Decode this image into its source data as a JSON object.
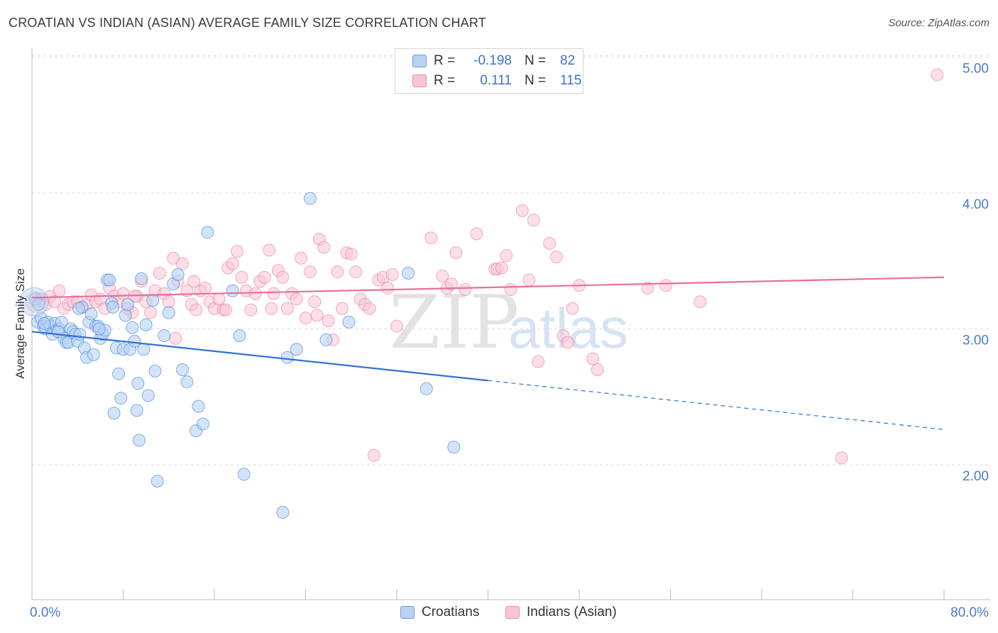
{
  "title": "CROATIAN VS INDIAN (ASIAN) AVERAGE FAMILY SIZE CORRELATION CHART",
  "source": "Source: ZipAtlas.com",
  "watermark": {
    "zip": "ZIP",
    "atlas": "atlas"
  },
  "legend": {
    "rows": [
      {
        "r_label": "R =",
        "r_value": "-0.198",
        "n_label": "N =",
        "n_value": "82"
      },
      {
        "r_label": "R =",
        "r_value": "0.111",
        "n_label": "N =",
        "n_value": "115"
      }
    ]
  },
  "bottom_legend": {
    "series1": "Croatians",
    "series2": "Indians (Asian)"
  },
  "colors": {
    "blue": "#4a86d8",
    "blue_fill": "#b8d2f3",
    "pink": "#e8709a",
    "pink_fill": "#f9c4d6",
    "tick": "#4a7cc7"
  },
  "chart_data": {
    "type": "scatter",
    "title": "CROATIAN VS INDIAN (ASIAN) AVERAGE FAMILY SIZE CORRELATION CHART",
    "xlabel": "",
    "ylabel": "Average Family Size",
    "xlim": [
      0,
      80
    ],
    "ylim": [
      1.0,
      5.2
    ],
    "x_tick_labels": [
      "0.0%",
      "80.0%"
    ],
    "y_ticks": [
      2.0,
      3.0,
      4.0,
      5.0
    ],
    "y_tick_labels": [
      "2.00",
      "3.00",
      "4.00",
      "5.00"
    ],
    "grid": true,
    "series": [
      {
        "name": "Croatians",
        "r": -0.198,
        "n": 82,
        "trend": {
          "x0": 0,
          "y0": 2.98,
          "x1": 40,
          "y1": 2.62,
          "dashed_to_x": 80,
          "dashed_to_y": 2.26
        },
        "points": [
          [
            0.3,
            3.22
          ],
          [
            0.5,
            3.05
          ],
          [
            0.8,
            3.08
          ],
          [
            1.0,
            3.02
          ],
          [
            1.2,
            3.0
          ],
          [
            1.4,
            3.05
          ],
          [
            1.6,
            3.02
          ],
          [
            1.8,
            2.96
          ],
          [
            2.0,
            3.04
          ],
          [
            2.2,
            2.99
          ],
          [
            2.4,
            3.0
          ],
          [
            2.6,
            3.05
          ],
          [
            2.8,
            2.93
          ],
          [
            3.0,
            2.9
          ],
          [
            3.2,
            2.9
          ],
          [
            3.4,
            3.0
          ],
          [
            3.6,
            2.98
          ],
          [
            3.8,
            2.96
          ],
          [
            4.0,
            2.91
          ],
          [
            4.2,
            2.96
          ],
          [
            4.4,
            3.16
          ],
          [
            4.6,
            2.86
          ],
          [
            4.8,
            2.79
          ],
          [
            5.0,
            3.05
          ],
          [
            5.2,
            3.11
          ],
          [
            5.4,
            2.81
          ],
          [
            5.6,
            3.02
          ],
          [
            5.8,
            3.02
          ],
          [
            6.0,
            2.93
          ],
          [
            6.2,
            2.96
          ],
          [
            6.4,
            2.99
          ],
          [
            6.6,
            3.36
          ],
          [
            6.8,
            3.36
          ],
          [
            7.0,
            3.19
          ],
          [
            7.2,
            2.38
          ],
          [
            7.4,
            2.86
          ],
          [
            7.6,
            2.67
          ],
          [
            7.8,
            2.49
          ],
          [
            8.0,
            2.85
          ],
          [
            8.2,
            3.1
          ],
          [
            8.4,
            3.18
          ],
          [
            8.6,
            2.85
          ],
          [
            8.8,
            3.01
          ],
          [
            9.0,
            2.91
          ],
          [
            9.2,
            2.4
          ],
          [
            9.4,
            2.18
          ],
          [
            9.6,
            3.37
          ],
          [
            9.8,
            2.85
          ],
          [
            10.0,
            3.03
          ],
          [
            10.2,
            2.51
          ],
          [
            10.6,
            3.21
          ],
          [
            10.8,
            2.69
          ],
          [
            11.0,
            1.88
          ],
          [
            11.6,
            2.95
          ],
          [
            12.0,
            3.12
          ],
          [
            12.4,
            3.33
          ],
          [
            12.8,
            3.4
          ],
          [
            13.2,
            2.7
          ],
          [
            13.6,
            2.61
          ],
          [
            14.4,
            2.25
          ],
          [
            14.6,
            2.43
          ],
          [
            15.0,
            2.3
          ],
          [
            15.4,
            3.71
          ],
          [
            17.6,
            3.28
          ],
          [
            18.2,
            2.95
          ],
          [
            18.6,
            1.93
          ],
          [
            22.0,
            1.65
          ],
          [
            22.4,
            2.79
          ],
          [
            23.2,
            2.85
          ],
          [
            24.4,
            3.96
          ],
          [
            25.8,
            2.92
          ],
          [
            27.8,
            3.05
          ],
          [
            33.0,
            3.41
          ],
          [
            34.6,
            2.56
          ],
          [
            37.0,
            2.13
          ],
          [
            0.6,
            3.18
          ],
          [
            1.1,
            3.04
          ],
          [
            2.3,
            2.98
          ],
          [
            4.1,
            3.15
          ],
          [
            5.9,
            3.0
          ],
          [
            7.1,
            3.16
          ],
          [
            9.3,
            2.6
          ]
        ]
      },
      {
        "name": "Indians (Asian)",
        "r": 0.111,
        "n": 115,
        "trend": {
          "x0": 0,
          "y0": 3.23,
          "x1": 80,
          "y1": 3.38
        },
        "points": [
          [
            0.4,
            3.2
          ],
          [
            0.8,
            3.22
          ],
          [
            1.2,
            3.18
          ],
          [
            1.6,
            3.24
          ],
          [
            2.0,
            3.2
          ],
          [
            2.4,
            3.28
          ],
          [
            2.8,
            3.15
          ],
          [
            3.2,
            3.18
          ],
          [
            3.6,
            3.2
          ],
          [
            4.0,
            3.2
          ],
          [
            4.4,
            3.16
          ],
          [
            4.8,
            3.18
          ],
          [
            5.2,
            3.25
          ],
          [
            5.6,
            3.2
          ],
          [
            6.0,
            3.22
          ],
          [
            6.4,
            3.15
          ],
          [
            6.8,
            3.3
          ],
          [
            7.2,
            3.24
          ],
          [
            7.6,
            3.2
          ],
          [
            8.0,
            3.26
          ],
          [
            8.4,
            3.15
          ],
          [
            8.8,
            3.12
          ],
          [
            9.2,
            3.24
          ],
          [
            9.6,
            3.35
          ],
          [
            10.0,
            3.2
          ],
          [
            10.4,
            3.12
          ],
          [
            10.8,
            3.28
          ],
          [
            11.2,
            3.41
          ],
          [
            11.6,
            3.26
          ],
          [
            12.0,
            3.2
          ],
          [
            12.4,
            3.52
          ],
          [
            12.8,
            3.35
          ],
          [
            13.2,
            3.48
          ],
          [
            13.6,
            3.28
          ],
          [
            14.0,
            3.18
          ],
          [
            14.4,
            3.14
          ],
          [
            14.8,
            3.28
          ],
          [
            15.2,
            3.3
          ],
          [
            15.6,
            3.2
          ],
          [
            16.0,
            3.15
          ],
          [
            16.4,
            3.22
          ],
          [
            16.8,
            3.14
          ],
          [
            17.2,
            3.45
          ],
          [
            17.6,
            3.48
          ],
          [
            18.0,
            3.57
          ],
          [
            18.4,
            3.38
          ],
          [
            18.8,
            3.28
          ],
          [
            19.2,
            3.14
          ],
          [
            19.6,
            3.26
          ],
          [
            20.0,
            3.35
          ],
          [
            20.4,
            3.38
          ],
          [
            20.8,
            3.58
          ],
          [
            21.2,
            3.26
          ],
          [
            21.6,
            3.43
          ],
          [
            22.0,
            3.38
          ],
          [
            22.4,
            3.15
          ],
          [
            22.8,
            3.26
          ],
          [
            23.2,
            3.22
          ],
          [
            23.6,
            3.52
          ],
          [
            24.0,
            3.08
          ],
          [
            24.4,
            3.42
          ],
          [
            24.8,
            3.2
          ],
          [
            25.2,
            3.66
          ],
          [
            25.6,
            3.6
          ],
          [
            26.0,
            3.06
          ],
          [
            26.4,
            2.92
          ],
          [
            26.8,
            3.42
          ],
          [
            27.2,
            3.15
          ],
          [
            27.6,
            3.56
          ],
          [
            28.0,
            3.55
          ],
          [
            28.4,
            3.42
          ],
          [
            28.8,
            3.22
          ],
          [
            29.2,
            3.18
          ],
          [
            29.6,
            3.15
          ],
          [
            30.0,
            2.07
          ],
          [
            30.4,
            3.36
          ],
          [
            30.8,
            3.38
          ],
          [
            31.2,
            3.3
          ],
          [
            31.6,
            3.4
          ],
          [
            32.0,
            3.02
          ],
          [
            35.0,
            3.67
          ],
          [
            36.0,
            3.39
          ],
          [
            36.4,
            3.3
          ],
          [
            36.8,
            3.33
          ],
          [
            37.2,
            3.56
          ],
          [
            38.0,
            3.29
          ],
          [
            39.0,
            3.7
          ],
          [
            40.6,
            3.44
          ],
          [
            40.8,
            3.44
          ],
          [
            41.2,
            3.45
          ],
          [
            41.6,
            3.54
          ],
          [
            42.0,
            3.29
          ],
          [
            43.0,
            3.87
          ],
          [
            43.6,
            3.36
          ],
          [
            44.0,
            3.8
          ],
          [
            44.4,
            2.76
          ],
          [
            45.4,
            3.63
          ],
          [
            46.0,
            3.53
          ],
          [
            46.6,
            2.95
          ],
          [
            47.0,
            2.9
          ],
          [
            47.4,
            3.15
          ],
          [
            48.0,
            3.32
          ],
          [
            49.2,
            2.78
          ],
          [
            49.6,
            2.7
          ],
          [
            54.0,
            3.3
          ],
          [
            55.6,
            3.32
          ],
          [
            58.6,
            3.2
          ],
          [
            71.0,
            2.05
          ],
          [
            79.4,
            4.87
          ],
          [
            17.0,
            3.14
          ],
          [
            21.0,
            3.15
          ],
          [
            25.0,
            3.1
          ],
          [
            14.2,
            3.35
          ],
          [
            9.0,
            3.24
          ],
          [
            12.6,
            2.93
          ]
        ]
      }
    ]
  }
}
